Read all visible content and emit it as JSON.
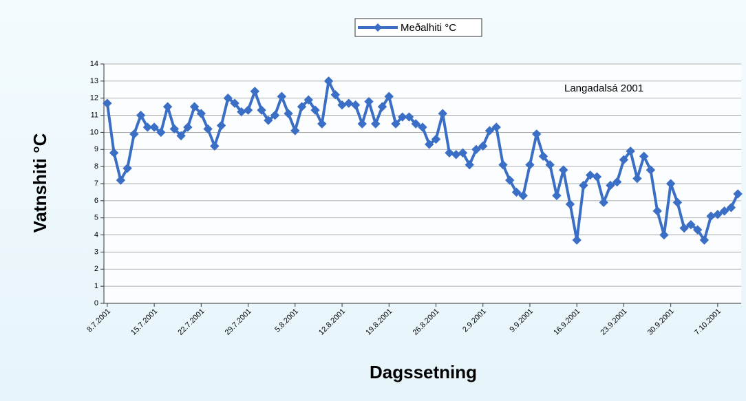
{
  "chart_data": {
    "type": "line",
    "annotation": "Langadalsá 2001",
    "x_label": "Dagssetning",
    "y_label": "Vatnshiti °C",
    "categories": [
      "8.7.2001",
      null,
      null,
      null,
      null,
      null,
      null,
      "15.7.2001",
      null,
      null,
      null,
      null,
      null,
      null,
      "22.7.2001",
      null,
      null,
      null,
      null,
      null,
      null,
      "29.7.2001",
      null,
      null,
      null,
      null,
      null,
      null,
      "5.8.2001",
      null,
      null,
      null,
      null,
      null,
      null,
      "12.8.2001",
      null,
      null,
      null,
      null,
      null,
      null,
      "19.8.2001",
      null,
      null,
      null,
      null,
      null,
      null,
      "26.8.2001",
      null,
      null,
      null,
      null,
      null,
      null,
      "2.9.2001",
      null,
      null,
      null,
      null,
      null,
      null,
      "9.9.2001",
      null,
      null,
      null,
      null,
      null,
      null,
      "16.9.2001",
      null,
      null,
      null,
      null,
      null,
      null,
      "23.9.2001",
      null,
      null,
      null,
      null,
      null,
      null,
      "30.9.2001",
      null,
      null,
      null,
      null,
      null,
      null,
      "7.10.2001",
      null,
      null,
      null
    ],
    "series": [
      {
        "name": "Meðalhiti °C",
        "color": "#3b6fc6",
        "values": [
          11.7,
          8.8,
          7.2,
          7.9,
          9.9,
          11.0,
          10.3,
          10.3,
          10.0,
          11.5,
          10.2,
          9.8,
          10.3,
          11.5,
          11.1,
          10.2,
          9.2,
          10.4,
          12.0,
          11.7,
          11.2,
          11.3,
          12.4,
          11.3,
          10.7,
          11.0,
          12.1,
          11.1,
          10.1,
          11.5,
          11.9,
          11.3,
          10.5,
          13.0,
          12.2,
          11.6,
          11.7,
          11.6,
          10.5,
          11.8,
          10.5,
          11.5,
          12.1,
          10.5,
          10.9,
          10.9,
          10.5,
          10.3,
          9.3,
          9.6,
          11.1,
          8.8,
          8.7,
          8.8,
          8.1,
          9.0,
          9.2,
          10.1,
          10.3,
          8.1,
          7.2,
          6.5,
          6.3,
          8.1,
          9.9,
          8.6,
          8.1,
          6.3,
          7.8,
          5.8,
          3.7,
          6.9,
          7.5,
          7.4,
          5.9,
          6.9,
          7.1,
          8.4,
          8.9,
          7.3,
          8.6,
          7.8,
          5.4,
          4.0,
          7.0,
          5.9,
          4.4,
          4.6,
          4.3,
          3.7,
          5.1,
          5.2,
          5.4,
          5.6,
          6.4
        ]
      }
    ],
    "ylim": [
      0,
      14
    ],
    "yticks": [
      0,
      1,
      2,
      3,
      4,
      5,
      6,
      7,
      8,
      9,
      10,
      11,
      12,
      13,
      14
    ],
    "grid": true,
    "legend": "top"
  }
}
